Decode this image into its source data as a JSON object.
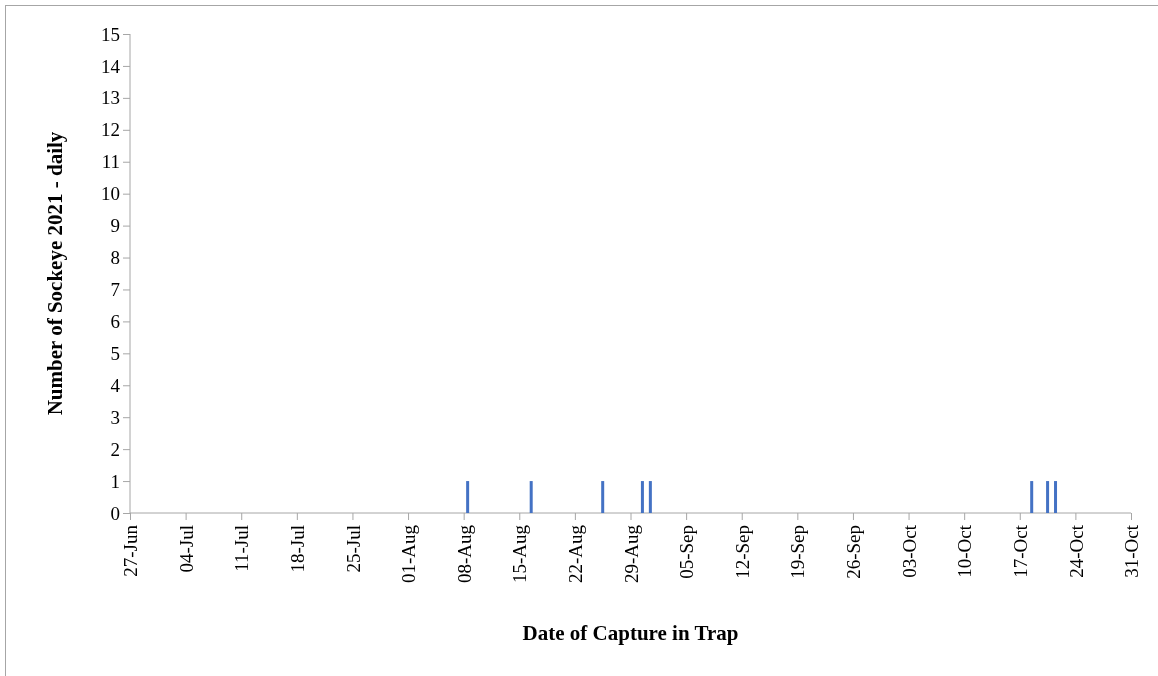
{
  "chart_data": {
    "type": "bar",
    "xlabel": "Date of Capture in Trap",
    "ylabel": "Number of Sockeye 2021 - daily",
    "x": [
      "2021-08-08",
      "2021-08-16",
      "2021-08-25",
      "2021-08-30",
      "2021-08-31",
      "2021-10-18",
      "2021-10-20",
      "2021-10-21"
    ],
    "values": [
      1,
      1,
      1,
      1,
      1,
      1,
      1,
      1
    ],
    "color": "#4472c4",
    "xlim": [
      "2021-06-27",
      "2021-10-31"
    ],
    "xticks": [
      {
        "value": "2021-06-27",
        "label": "27-Jun"
      },
      {
        "value": "2021-07-04",
        "label": "04-Jul"
      },
      {
        "value": "2021-07-11",
        "label": "11-Jul"
      },
      {
        "value": "2021-07-18",
        "label": "18-Jul"
      },
      {
        "value": "2021-07-25",
        "label": "25-Jul"
      },
      {
        "value": "2021-08-01",
        "label": "01-Aug"
      },
      {
        "value": "2021-08-08",
        "label": "08-Aug"
      },
      {
        "value": "2021-08-15",
        "label": "15-Aug"
      },
      {
        "value": "2021-08-22",
        "label": "22-Aug"
      },
      {
        "value": "2021-08-29",
        "label": "29-Aug"
      },
      {
        "value": "2021-09-05",
        "label": "05-Sep"
      },
      {
        "value": "2021-09-12",
        "label": "12-Sep"
      },
      {
        "value": "2021-09-19",
        "label": "19-Sep"
      },
      {
        "value": "2021-09-26",
        "label": "26-Sep"
      },
      {
        "value": "2021-10-03",
        "label": "03-Oct"
      },
      {
        "value": "2021-10-10",
        "label": "10-Oct"
      },
      {
        "value": "2021-10-17",
        "label": "17-Oct"
      },
      {
        "value": "2021-10-24",
        "label": "24-Oct"
      },
      {
        "value": "2021-10-31",
        "label": "31-Oct"
      }
    ],
    "ylim": [
      0,
      15
    ],
    "yticks": [
      0,
      1,
      2,
      3,
      4,
      5,
      6,
      7,
      8,
      9,
      10,
      11,
      12,
      13,
      14,
      15
    ]
  }
}
